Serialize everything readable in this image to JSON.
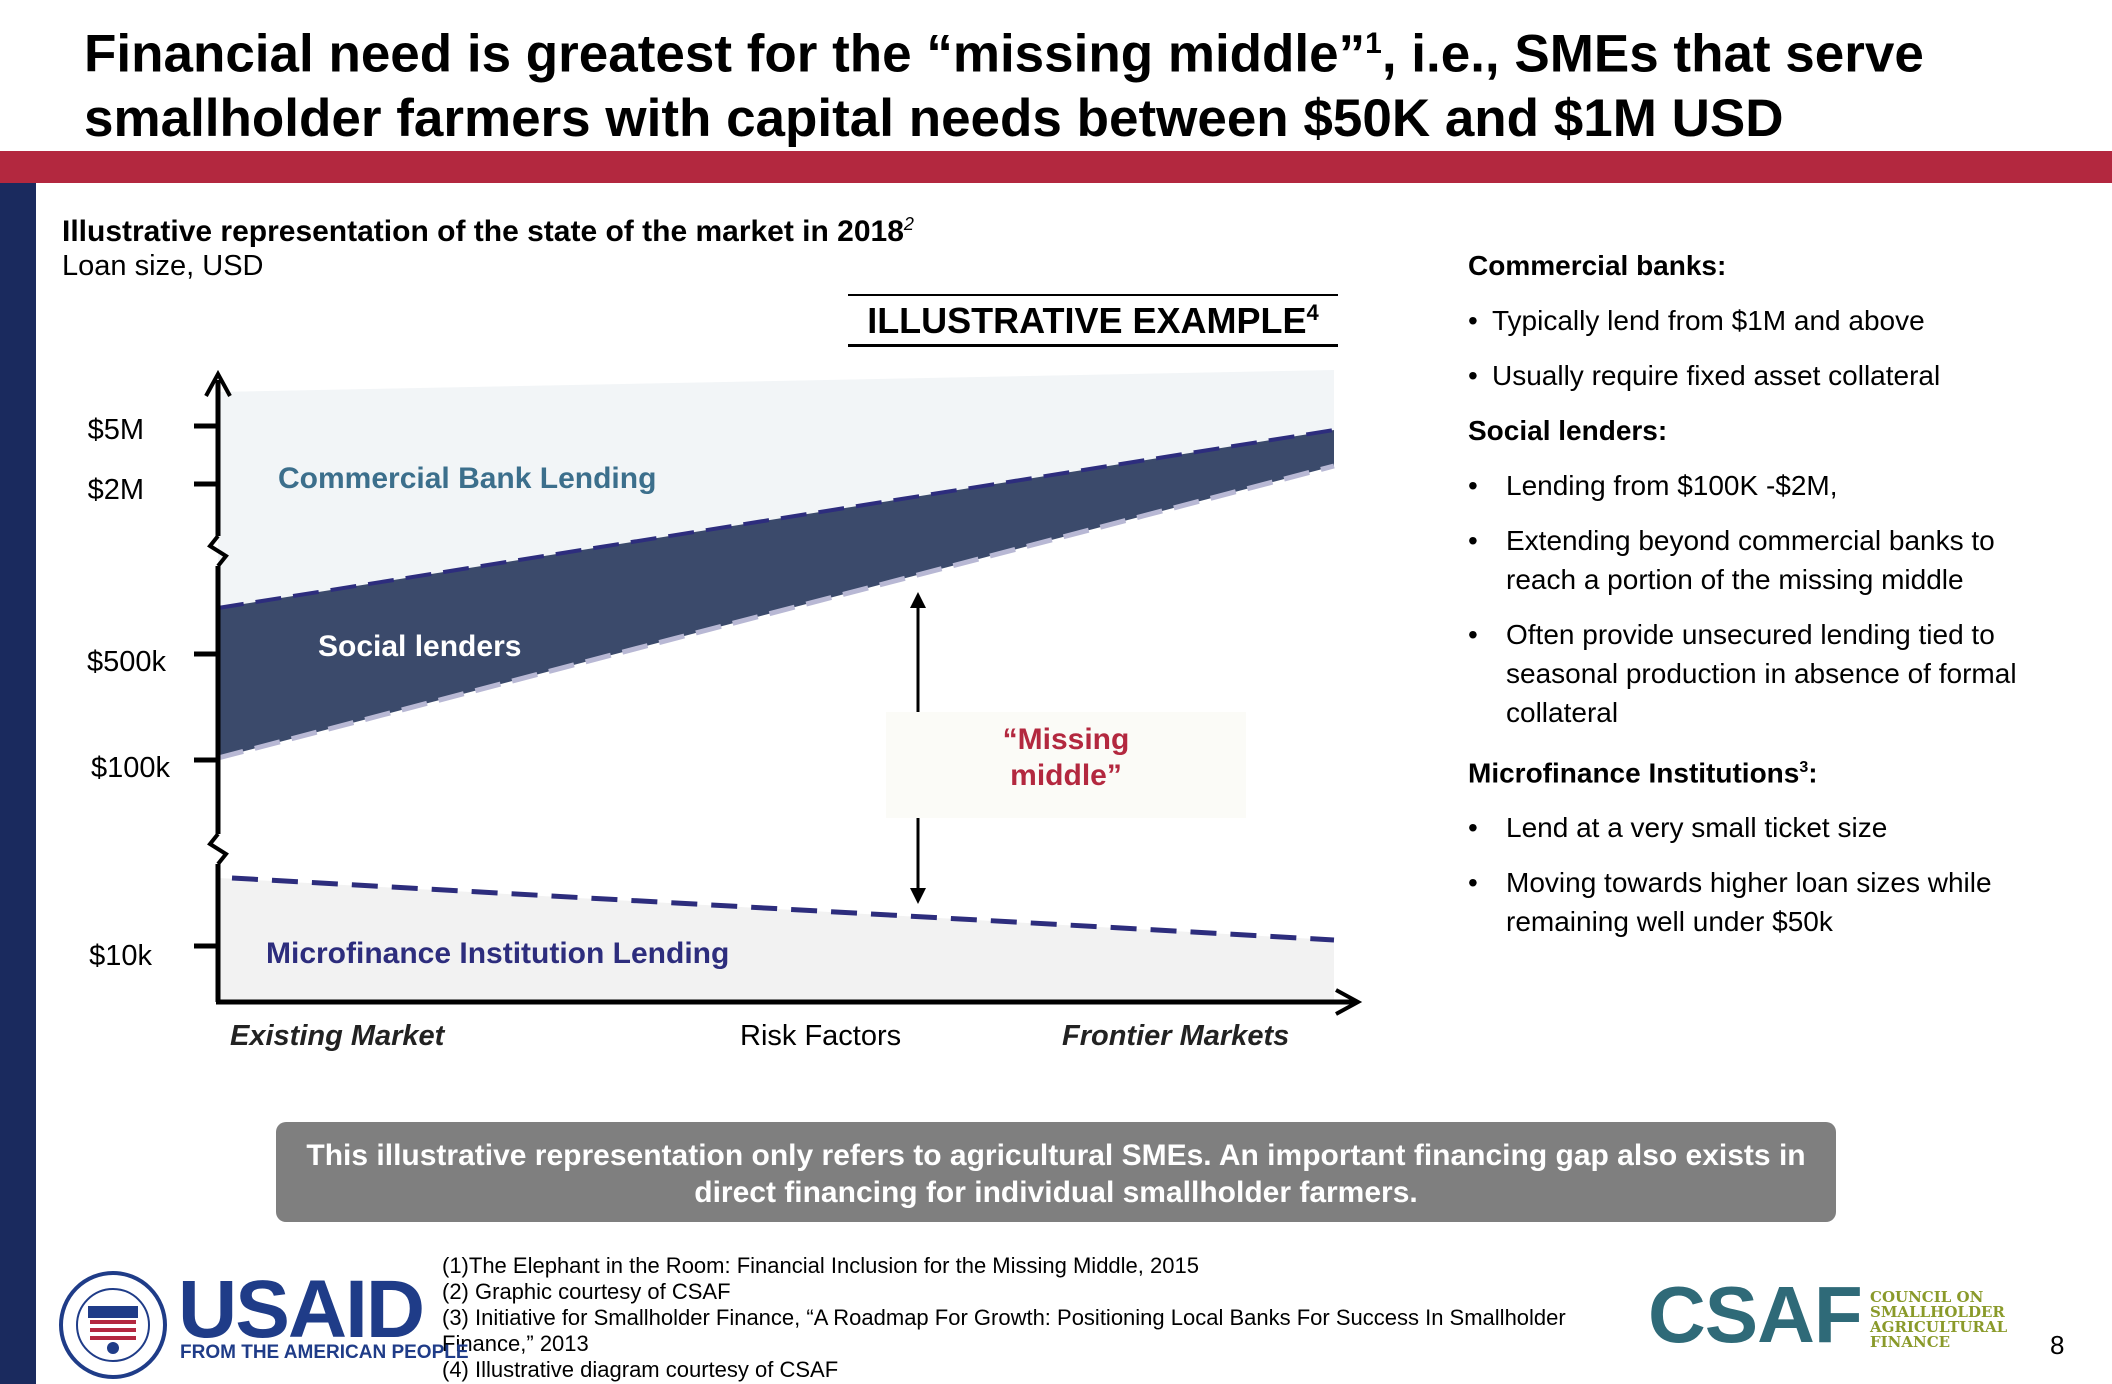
{
  "header": {
    "title_part1": "Financial need is greatest for the “missing middle”",
    "title_sup": "1",
    "title_part2": ", i.e., SMEs that serve smallholder farmers with capital needs between $50K and $1M USD"
  },
  "chart": {
    "title": "Illustrative representation of the state of the market in 2018",
    "title_sup": "2",
    "subtitle": "Loan size, USD",
    "badge": "ILLUSTRATIVE EXAMPLE",
    "badge_sup": "4",
    "y_ticks": [
      "$5M",
      "$2M",
      "$500k",
      "$100k",
      "$10k"
    ],
    "x_labels": {
      "left": "Existing Market",
      "center": "Risk Factors",
      "right": "Frontier Markets"
    },
    "regions": {
      "commercial": "Commercial Bank Lending",
      "social": "Social lenders",
      "mfi": "Microfinance Institution Lending",
      "missing_middle_line1": "“Missing",
      "missing_middle_line2": "middle”"
    },
    "colors": {
      "commercial_fill": "#f2f5f7",
      "social_fill": "#3b4a6b",
      "mfi_fill": "#f2f2f2",
      "dash": "#2d2d7d",
      "accent": "#b3283f"
    }
  },
  "right_panel": {
    "sections": [
      {
        "heading": "Commercial banks:",
        "sup": "",
        "items": [
          "Typically lend from $1M and above",
          "Usually require fixed asset collateral"
        ]
      },
      {
        "heading": "Social lenders:",
        "sup": "",
        "items": [
          "Lending from $100K -$2M,",
          "Extending beyond commercial banks to reach a portion of the missing middle",
          "Often provide unsecured lending tied to seasonal production in absence of formal collateral"
        ]
      },
      {
        "heading": "Microfinance Institutions",
        "sup": "3",
        "heading_suffix": ":",
        "items": [
          "Lend at a very small ticket size",
          "Moving towards higher loan sizes while remaining well under $50k"
        ]
      }
    ]
  },
  "note": "This illustrative representation only refers to agricultural SMEs. An important financing gap also exists in direct financing for individual smallholder farmers.",
  "footnotes": [
    "(1)The Elephant in the Room: Financial Inclusion for the Missing Middle, 2015",
    "(2) Graphic courtesy of CSAF",
    "(3) Initiative for Smallholder Finance, “A Roadmap For Growth: Positioning Local Banks For Success In Smallholder Finance,” 2013",
    "(4) Illustrative diagram courtesy of CSAF"
  ],
  "logos": {
    "usaid": "USAID",
    "usaid_tag": "FROM THE AMERICAN PEOPLE",
    "csaf": "CSAF",
    "csaf_sub": [
      "COUNCIL ON",
      "SMALLHOLDER",
      "AGRICULTURAL",
      "FINANCE"
    ]
  },
  "page_number": "8"
}
